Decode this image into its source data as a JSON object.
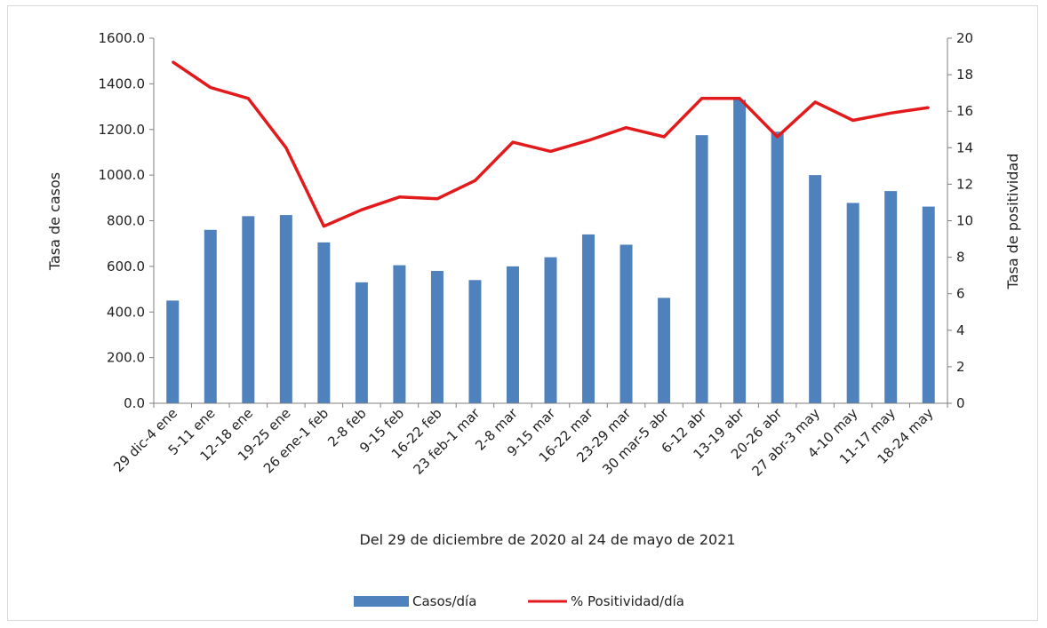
{
  "chart_data": {
    "type": "bar+line",
    "categories": [
      "29 dic-4 ene",
      "5-11 ene",
      "12-18 ene",
      "19-25 ene",
      "26 ene-1 feb",
      "2-8 feb",
      "9-15 feb",
      "16-22 feb",
      "23 feb-1 mar",
      "2-8 mar",
      "9-15 mar",
      "16-22 mar",
      "23-29 mar",
      "30 mar-5 abr",
      "6-12 abr",
      "13-19 abr",
      "20-26 abr",
      "27 abr-3 may",
      "4-10 may",
      "11-17 may",
      "18-24 may"
    ],
    "series": [
      {
        "name": "Casos/día",
        "type": "bar",
        "axis": "left",
        "color": "#4f81bd",
        "values": [
          450,
          760,
          820,
          825,
          705,
          530,
          605,
          580,
          540,
          600,
          640,
          740,
          695,
          462,
          1175,
          1330,
          1190,
          1000,
          878,
          930,
          862
        ]
      },
      {
        "name": "% Positividad/día",
        "type": "line",
        "axis": "right",
        "color": "#e31a1c",
        "values": [
          18.7,
          17.3,
          16.7,
          14.0,
          9.7,
          10.6,
          11.3,
          11.2,
          12.2,
          14.3,
          13.8,
          14.4,
          15.1,
          14.6,
          16.7,
          16.7,
          14.6,
          16.5,
          15.5,
          15.9,
          16.2
        ]
      }
    ],
    "ylabel": "Tasa de casos",
    "y2label": "Tasa de positividad",
    "xlabel": "Del 29 de diciembre de 2020 al 24 de mayo de 2021",
    "ylim": [
      0,
      1600
    ],
    "y2lim": [
      0,
      20
    ],
    "yticks": [
      "0.0",
      "200.0",
      "400.0",
      "600.0",
      "800.0",
      "1000.0",
      "1200.0",
      "1400.0",
      "1600.0"
    ],
    "y2ticks": [
      "0",
      "2",
      "4",
      "6",
      "8",
      "10",
      "12",
      "14",
      "16",
      "18",
      "20"
    ],
    "grid": false,
    "legend_position": "bottom"
  }
}
